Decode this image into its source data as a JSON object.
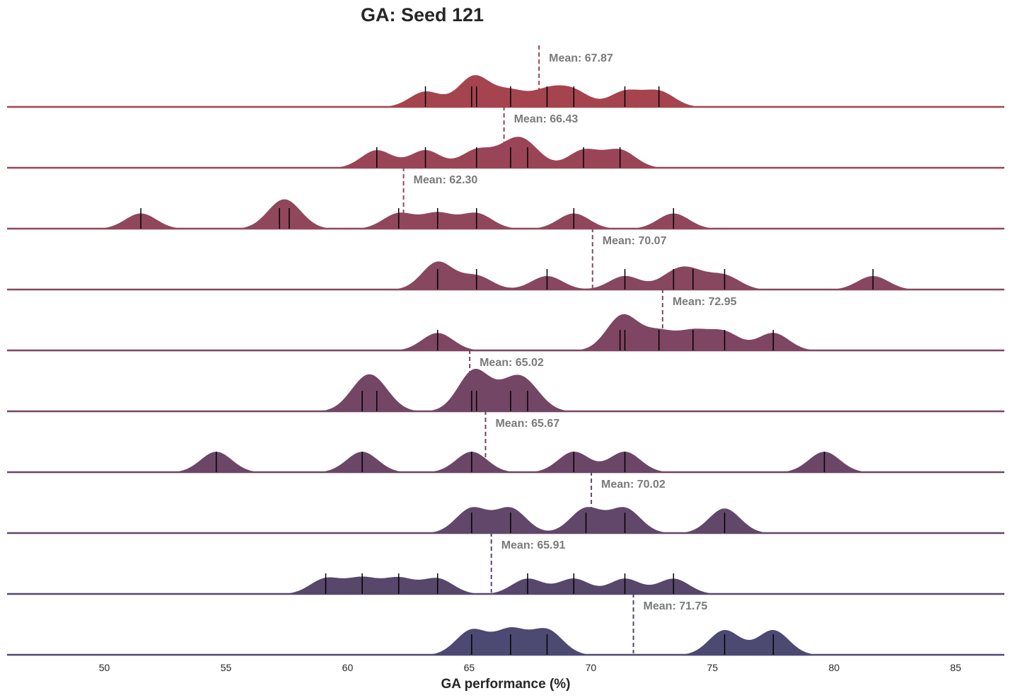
{
  "chart_data": {
    "type": "area",
    "subtype": "ridgeline-kde",
    "title": "GA: Seed 121",
    "xlabel": "GA performance (%)",
    "ylabel": "",
    "xlim": [
      46,
      87
    ],
    "xticks": [
      50,
      55,
      60,
      65,
      70,
      75,
      80,
      85
    ],
    "grid": false,
    "legend": "none",
    "mean_label_prefix": "Mean: ",
    "rows": [
      {
        "color": "#a5444f",
        "mean": 67.87,
        "mean_label": "67.87",
        "values": [
          63.2,
          65.1,
          65.3,
          66.7,
          68.2,
          69.3,
          71.4,
          72.8
        ]
      },
      {
        "color": "#9a4557",
        "mean": 66.43,
        "mean_label": "66.43",
        "values": [
          61.2,
          63.2,
          65.3,
          66.7,
          67.4,
          69.7,
          71.2
        ]
      },
      {
        "color": "#91475b",
        "mean": 62.3,
        "mean_label": "62.30",
        "values": [
          51.5,
          57.2,
          57.6,
          62.1,
          63.7,
          65.3,
          69.3,
          73.4
        ]
      },
      {
        "color": "#87475f",
        "mean": 70.07,
        "mean_label": "70.07",
        "values": [
          63.7,
          63.7,
          65.3,
          68.2,
          71.4,
          73.4,
          74.2,
          75.5,
          81.6
        ]
      },
      {
        "color": "#7e4662",
        "mean": 72.95,
        "mean_label": "72.95",
        "values": [
          63.7,
          71.2,
          71.4,
          72.8,
          74.2,
          75.5,
          77.5
        ]
      },
      {
        "color": "#744665",
        "mean": 65.02,
        "mean_label": "65.02",
        "values": [
          60.6,
          61.2,
          65.1,
          65.3,
          66.7,
          67.4
        ]
      },
      {
        "color": "#6b4667",
        "mean": 65.67,
        "mean_label": "65.67",
        "values": [
          54.6,
          60.6,
          65.1,
          69.3,
          71.4,
          79.6
        ]
      },
      {
        "color": "#614769",
        "mean": 70.02,
        "mean_label": "70.02",
        "values": [
          65.1,
          66.7,
          69.8,
          71.4,
          75.5
        ]
      },
      {
        "color": "#57476b",
        "mean": 65.91,
        "mean_label": "65.91",
        "values": [
          59.1,
          60.6,
          62.1,
          63.7,
          67.4,
          69.3,
          71.4,
          73.4
        ]
      },
      {
        "color": "#4c4a72",
        "mean": 71.75,
        "mean_label": "71.75",
        "values": [
          65.1,
          66.7,
          68.2,
          75.5,
          77.5
        ]
      }
    ]
  }
}
